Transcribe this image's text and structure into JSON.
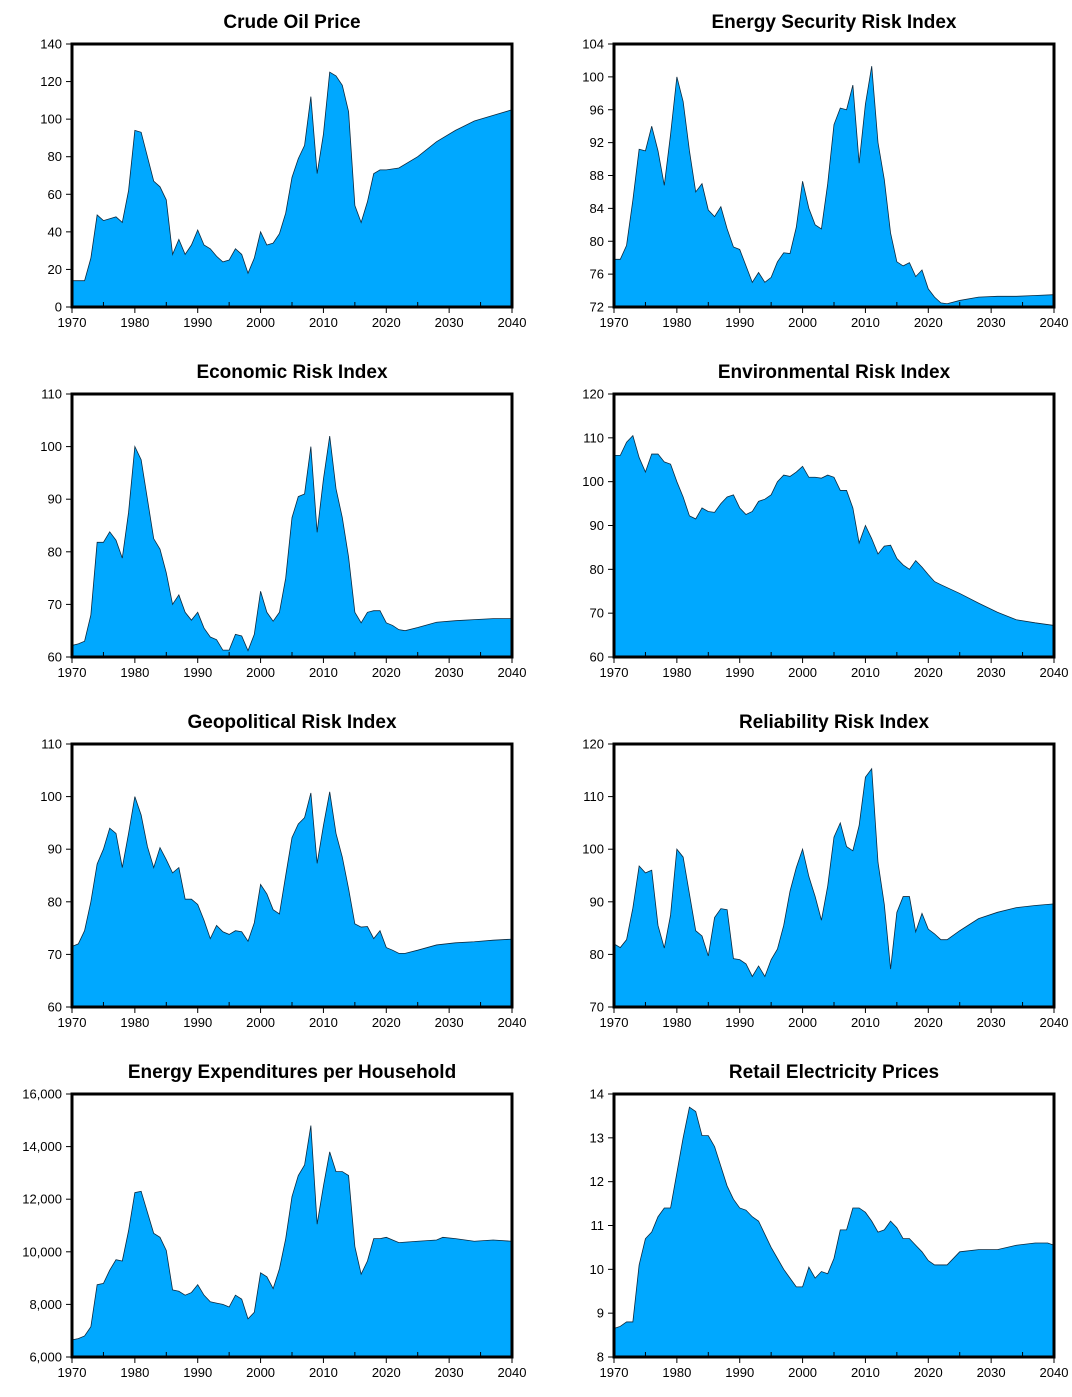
{
  "colors": {
    "fill": "#00a8ff",
    "stroke": "#000000",
    "background": "#ffffff"
  },
  "chart_data": [
    {
      "type": "area",
      "title": "Crude Oil Price",
      "xlim": [
        1970,
        2040
      ],
      "ylim": [
        0,
        140
      ],
      "x_ticks": [
        1970,
        1980,
        1990,
        2000,
        2010,
        2020,
        2030,
        2040
      ],
      "y_ticks": [
        "0",
        "20",
        "40",
        "60",
        "80",
        "100",
        "120",
        "140"
      ],
      "x": [
        1970,
        1971,
        1972,
        1973,
        1974,
        1975,
        1976,
        1977,
        1978,
        1979,
        1980,
        1981,
        1982,
        1983,
        1984,
        1985,
        1986,
        1987,
        1988,
        1989,
        1990,
        1991,
        1992,
        1993,
        1994,
        1995,
        1996,
        1997,
        1998,
        1999,
        2000,
        2001,
        2002,
        2003,
        2004,
        2005,
        2006,
        2007,
        2008,
        2009,
        2010,
        2011,
        2012,
        2013,
        2014,
        2015,
        2016,
        2017,
        2018,
        2019,
        2020,
        2022,
        2025,
        2028,
        2031,
        2034,
        2037,
        2040
      ],
      "values": [
        14,
        14,
        14,
        26,
        49,
        46,
        47,
        48,
        45,
        62,
        94,
        93,
        80,
        67,
        64,
        57,
        28,
        36,
        28,
        33,
        41,
        33,
        31,
        27,
        24,
        25,
        31,
        28,
        18,
        26,
        40,
        33,
        34,
        39,
        50,
        69,
        79,
        86,
        112,
        71,
        92,
        125,
        123,
        118,
        104,
        54,
        45,
        56,
        71,
        73,
        73,
        74,
        80,
        88,
        94,
        99,
        102,
        105
      ]
    },
    {
      "type": "area",
      "title": "Energy Security Risk Index",
      "xlim": [
        1970,
        2040
      ],
      "ylim": [
        72,
        104
      ],
      "x_ticks": [
        1970,
        1980,
        1990,
        2000,
        2010,
        2020,
        2030,
        2040
      ],
      "y_ticks": [
        "72",
        "76",
        "80",
        "84",
        "88",
        "92",
        "96",
        "100",
        "104"
      ],
      "x": [
        1970,
        1971,
        1972,
        1973,
        1974,
        1975,
        1976,
        1977,
        1978,
        1979,
        1980,
        1981,
        1982,
        1983,
        1984,
        1985,
        1986,
        1987,
        1988,
        1989,
        1990,
        1991,
        1992,
        1993,
        1994,
        1995,
        1996,
        1997,
        1998,
        1999,
        2000,
        2001,
        2002,
        2003,
        2004,
        2005,
        2006,
        2007,
        2008,
        2009,
        2010,
        2011,
        2012,
        2013,
        2014,
        2015,
        2016,
        2017,
        2018,
        2019,
        2020,
        2021,
        2022,
        2023,
        2025,
        2028,
        2031,
        2034,
        2037,
        2040
      ],
      "values": [
        77.8,
        77.8,
        79.5,
        85,
        91.2,
        91,
        94,
        91,
        86.8,
        93,
        100,
        97,
        91,
        86,
        87,
        83.8,
        83,
        84.2,
        81.5,
        79.3,
        79,
        77,
        75,
        76.2,
        75,
        75.6,
        77.5,
        78.6,
        78.5,
        81.7,
        87.3,
        84,
        82,
        81.5,
        87,
        94.2,
        96.2,
        96,
        99,
        89.5,
        96.7,
        101.3,
        92,
        87.5,
        81,
        77.5,
        77,
        77.4,
        75.7,
        76.5,
        74.2,
        73.2,
        72.5,
        72.4,
        72.8,
        73.2,
        73.3,
        73.3,
        73.4,
        73.5
      ]
    },
    {
      "type": "area",
      "title": "Economic Risk Index",
      "xlim": [
        1970,
        2040
      ],
      "ylim": [
        60,
        110
      ],
      "x_ticks": [
        1970,
        1980,
        1990,
        2000,
        2010,
        2020,
        2030,
        2040
      ],
      "y_ticks": [
        "60",
        "70",
        "80",
        "90",
        "100",
        "110"
      ],
      "x": [
        1970,
        1971,
        1972,
        1973,
        1974,
        1975,
        1976,
        1977,
        1978,
        1979,
        1980,
        1981,
        1982,
        1983,
        1984,
        1985,
        1986,
        1987,
        1988,
        1989,
        1990,
        1991,
        1992,
        1993,
        1994,
        1995,
        1996,
        1997,
        1998,
        1999,
        2000,
        2001,
        2002,
        2003,
        2004,
        2005,
        2006,
        2007,
        2008,
        2009,
        2010,
        2011,
        2012,
        2013,
        2014,
        2015,
        2016,
        2017,
        2018,
        2019,
        2020,
        2021,
        2022,
        2023,
        2025,
        2028,
        2031,
        2034,
        2037,
        2040
      ],
      "values": [
        62.2,
        62.5,
        63,
        68,
        81.8,
        81.8,
        83.8,
        82.2,
        78.8,
        87.5,
        100,
        97.5,
        90,
        82.5,
        80.5,
        76,
        70,
        71.8,
        68.5,
        67,
        68.5,
        65.5,
        63.8,
        63.3,
        61.3,
        61.3,
        64.3,
        64,
        61.2,
        64.3,
        72.5,
        68.5,
        66.8,
        68.5,
        75,
        86.5,
        90.5,
        91,
        100,
        83.7,
        93.8,
        102,
        92,
        86.5,
        79,
        68.5,
        66.5,
        68.5,
        68.8,
        68.8,
        66.5,
        66,
        65.2,
        65,
        65.6,
        66.6,
        66.9,
        67.1,
        67.3,
        67.3
      ]
    },
    {
      "type": "area",
      "title": "Environmental Risk Index",
      "xlim": [
        1970,
        2040
      ],
      "ylim": [
        60,
        120
      ],
      "x_ticks": [
        1970,
        1980,
        1990,
        2000,
        2010,
        2020,
        2030,
        2040
      ],
      "y_ticks": [
        "60",
        "70",
        "80",
        "90",
        "100",
        "110",
        "120"
      ],
      "x": [
        1970,
        1971,
        1972,
        1973,
        1974,
        1975,
        1976,
        1977,
        1978,
        1979,
        1980,
        1981,
        1982,
        1983,
        1984,
        1985,
        1986,
        1987,
        1988,
        1989,
        1990,
        1991,
        1992,
        1993,
        1994,
        1995,
        1996,
        1997,
        1998,
        1999,
        2000,
        2001,
        2002,
        2003,
        2004,
        2005,
        2006,
        2007,
        2008,
        2009,
        2010,
        2011,
        2012,
        2013,
        2014,
        2015,
        2016,
        2017,
        2018,
        2019,
        2020,
        2021,
        2022,
        2025,
        2028,
        2031,
        2034,
        2037,
        2040
      ],
      "values": [
        106,
        106,
        109,
        110.5,
        105.5,
        102.2,
        106.3,
        106.3,
        104.5,
        104,
        100,
        96.5,
        92.2,
        91.5,
        94,
        93.2,
        93,
        95,
        96.5,
        97,
        94,
        92.5,
        93.2,
        95.5,
        96,
        97,
        100,
        101.5,
        101.2,
        102.2,
        103.5,
        101,
        101,
        100.8,
        101.5,
        101,
        98,
        98,
        94,
        86,
        90,
        87,
        83.5,
        85.3,
        85.5,
        82.5,
        81,
        80,
        82,
        80.5,
        78.8,
        77.2,
        76.5,
        74.5,
        72.3,
        70.2,
        68.5,
        67.8,
        67.2
      ]
    },
    {
      "type": "area",
      "title": "Geopolitical Risk Index",
      "xlim": [
        1970,
        2040
      ],
      "ylim": [
        60,
        110
      ],
      "x_ticks": [
        1970,
        1980,
        1990,
        2000,
        2010,
        2020,
        2030,
        2040
      ],
      "y_ticks": [
        "60",
        "70",
        "80",
        "90",
        "100",
        "110"
      ],
      "x": [
        1970,
        1971,
        1972,
        1973,
        1974,
        1975,
        1976,
        1977,
        1978,
        1979,
        1980,
        1981,
        1982,
        1983,
        1984,
        1985,
        1986,
        1987,
        1988,
        1989,
        1990,
        1991,
        1992,
        1993,
        1994,
        1995,
        1996,
        1997,
        1998,
        1999,
        2000,
        2001,
        2002,
        2003,
        2004,
        2005,
        2006,
        2007,
        2008,
        2009,
        2010,
        2011,
        2012,
        2013,
        2014,
        2015,
        2016,
        2017,
        2018,
        2019,
        2020,
        2021,
        2022,
        2023,
        2025,
        2028,
        2031,
        2034,
        2037,
        2040
      ],
      "values": [
        71.5,
        72,
        74.5,
        80,
        87.2,
        90,
        94,
        93,
        86.5,
        93,
        100,
        96.5,
        90.5,
        86.5,
        90.3,
        88,
        85.5,
        86.5,
        80.5,
        80.5,
        79.5,
        76.5,
        73,
        75.5,
        74.3,
        73.8,
        74.5,
        74.3,
        72.5,
        76,
        83.3,
        81.5,
        78.5,
        77.7,
        85,
        92.2,
        94.8,
        96,
        100.7,
        87.3,
        94.5,
        100.9,
        93,
        88.5,
        82.5,
        75.8,
        75.2,
        75.3,
        73,
        74.5,
        71.3,
        70.8,
        70.2,
        70.2,
        70.8,
        71.8,
        72.2,
        72.4,
        72.7,
        72.9
      ]
    },
    {
      "type": "area",
      "title": "Reliability Risk Index",
      "xlim": [
        1970,
        2040
      ],
      "ylim": [
        70,
        120
      ],
      "x_ticks": [
        1970,
        1980,
        1990,
        2000,
        2010,
        2020,
        2030,
        2040
      ],
      "y_ticks": [
        "70",
        "80",
        "90",
        "100",
        "110",
        "120"
      ],
      "x": [
        1970,
        1971,
        1972,
        1973,
        1974,
        1975,
        1976,
        1977,
        1978,
        1979,
        1980,
        1981,
        1982,
        1983,
        1984,
        1985,
        1986,
        1987,
        1988,
        1989,
        1990,
        1991,
        1992,
        1993,
        1994,
        1995,
        1996,
        1997,
        1998,
        1999,
        2000,
        2001,
        2002,
        2003,
        2004,
        2005,
        2006,
        2007,
        2008,
        2009,
        2010,
        2011,
        2012,
        2013,
        2014,
        2015,
        2016,
        2017,
        2018,
        2019,
        2020,
        2021,
        2022,
        2023,
        2025,
        2028,
        2031,
        2034,
        2037,
        2040
      ],
      "values": [
        82,
        81.3,
        82.8,
        88.8,
        96.8,
        95.5,
        96,
        85.5,
        81.2,
        87.5,
        100,
        98.5,
        91.5,
        84.5,
        83.5,
        79.7,
        87,
        88.7,
        88.5,
        79.2,
        79,
        78.2,
        75.8,
        77.8,
        75.8,
        79,
        81,
        85.5,
        92,
        96.5,
        100,
        94.8,
        91,
        86.5,
        93,
        102.3,
        105,
        100.5,
        99.7,
        104.5,
        113.7,
        115.3,
        97.5,
        89.5,
        77.2,
        88,
        91,
        91,
        84.3,
        87.8,
        84.8,
        83.9,
        82.8,
        82.8,
        84.5,
        86.8,
        88,
        88.9,
        89.3,
        89.6
      ]
    },
    {
      "type": "area",
      "title": "Energy Expenditures per Household",
      "xlim": [
        1970,
        2040
      ],
      "ylim": [
        6000,
        16000
      ],
      "x_ticks": [
        1970,
        1980,
        1990,
        2000,
        2010,
        2020,
        2030,
        2040
      ],
      "y_ticks": [
        "6,000",
        "8,000",
        "10,000",
        "12,000",
        "14,000",
        "16,000"
      ],
      "x": [
        1970,
        1971,
        1972,
        1973,
        1974,
        1975,
        1976,
        1977,
        1978,
        1979,
        1980,
        1981,
        1982,
        1983,
        1984,
        1985,
        1986,
        1987,
        1988,
        1989,
        1990,
        1991,
        1992,
        1993,
        1994,
        1995,
        1996,
        1997,
        1998,
        1999,
        2000,
        2001,
        2002,
        2003,
        2004,
        2005,
        2006,
        2007,
        2008,
        2009,
        2010,
        2011,
        2012,
        2013,
        2014,
        2015,
        2016,
        2017,
        2018,
        2019,
        2020,
        2022,
        2025,
        2028,
        2029,
        2031,
        2034,
        2037,
        2040
      ],
      "values": [
        6650,
        6700,
        6800,
        7150,
        8750,
        8800,
        9300,
        9700,
        9650,
        10800,
        12250,
        12300,
        11500,
        10700,
        10550,
        10050,
        8550,
        8500,
        8350,
        8450,
        8750,
        8350,
        8100,
        8050,
        8000,
        7900,
        8350,
        8200,
        7450,
        7700,
        9200,
        9050,
        8600,
        9350,
        10500,
        12100,
        12900,
        13300,
        14800,
        11050,
        12500,
        13800,
        13050,
        13050,
        12900,
        10200,
        9150,
        9650,
        10500,
        10500,
        10550,
        10350,
        10400,
        10450,
        10550,
        10500,
        10400,
        10450,
        10400
      ]
    },
    {
      "type": "area",
      "title": "Retail Electricity Prices",
      "xlim": [
        1970,
        2040
      ],
      "ylim": [
        8,
        14
      ],
      "x_ticks": [
        1970,
        1980,
        1990,
        2000,
        2010,
        2020,
        2030,
        2040
      ],
      "y_ticks": [
        "8",
        "9",
        "10",
        "11",
        "12",
        "13",
        "14"
      ],
      "x": [
        1970,
        1971,
        1972,
        1973,
        1974,
        1975,
        1976,
        1977,
        1978,
        1979,
        1980,
        1981,
        1982,
        1983,
        1984,
        1985,
        1986,
        1987,
        1988,
        1989,
        1990,
        1991,
        1992,
        1993,
        1994,
        1995,
        1996,
        1997,
        1998,
        1999,
        2000,
        2001,
        2002,
        2003,
        2004,
        2005,
        2006,
        2007,
        2008,
        2009,
        2010,
        2011,
        2012,
        2013,
        2014,
        2015,
        2016,
        2017,
        2018,
        2019,
        2020,
        2021,
        2022,
        2023,
        2025,
        2028,
        2031,
        2034,
        2037,
        2039,
        2040
      ],
      "values": [
        8.65,
        8.7,
        8.8,
        8.8,
        10.1,
        10.7,
        10.85,
        11.2,
        11.4,
        11.4,
        12.2,
        13,
        13.7,
        13.6,
        13.05,
        13.05,
        12.8,
        12.35,
        11.9,
        11.6,
        11.4,
        11.35,
        11.2,
        11.1,
        10.8,
        10.5,
        10.25,
        10,
        9.8,
        9.6,
        9.6,
        10.05,
        9.8,
        9.95,
        9.9,
        10.25,
        10.9,
        10.9,
        11.4,
        11.4,
        11.3,
        11.1,
        10.85,
        10.9,
        11.1,
        10.95,
        10.7,
        10.7,
        10.55,
        10.4,
        10.2,
        10.1,
        10.1,
        10.1,
        10.4,
        10.45,
        10.45,
        10.55,
        10.6,
        10.6,
        10.55
      ]
    }
  ]
}
